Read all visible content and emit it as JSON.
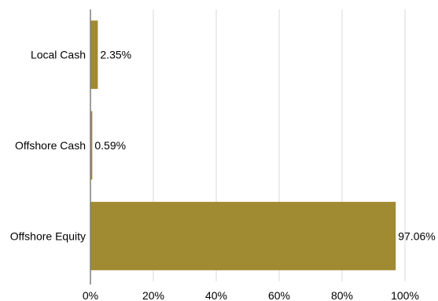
{
  "chart_data": {
    "type": "bar",
    "orientation": "horizontal",
    "categories": [
      "Local Cash",
      "Offshore Cash",
      "Offshore Equity"
    ],
    "values": [
      2.35,
      0.59,
      97.06
    ],
    "value_labels": [
      "2.35%",
      "0.59%",
      "97.06%"
    ],
    "xlim": [
      0,
      100
    ],
    "x_ticks": [
      0,
      20,
      40,
      60,
      80,
      100
    ],
    "x_tick_labels": [
      "0%",
      "20%",
      "40%",
      "60%",
      "80%",
      "100%"
    ],
    "grid": "vertical",
    "legend": "none",
    "title": "",
    "xlabel": "",
    "ylabel": ""
  },
  "colors": {
    "bar": "#A08A32",
    "grid": "#d9d9d9",
    "axis": "#7f7f7f",
    "text": "#000000"
  }
}
